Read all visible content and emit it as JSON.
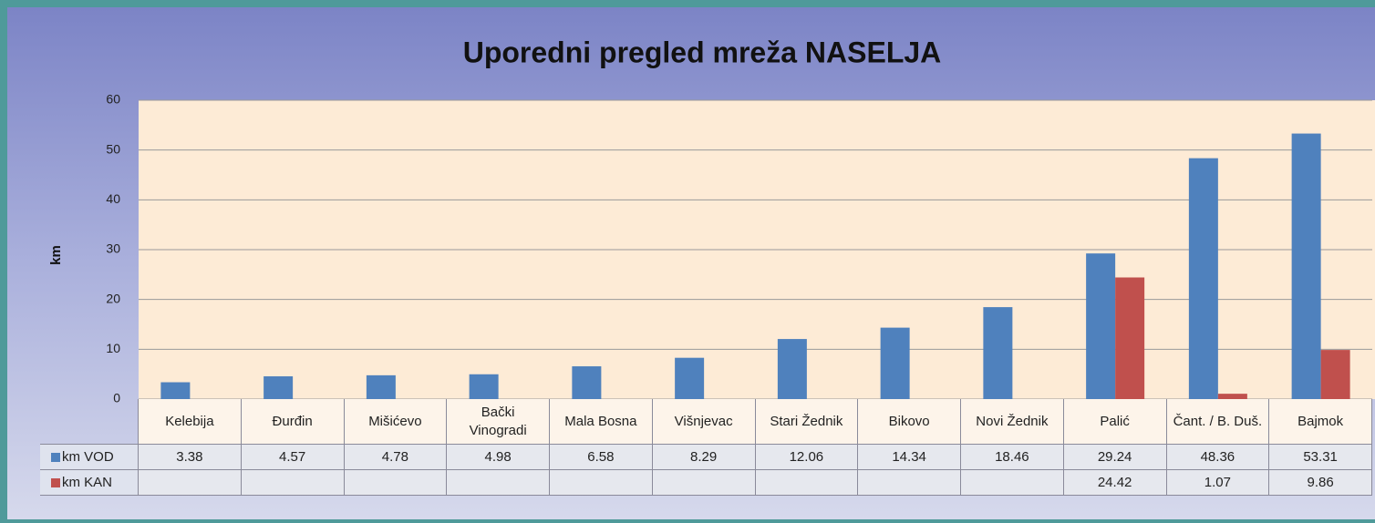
{
  "chart_data": {
    "type": "bar",
    "title": "Uporedni pregled mreža NASELJA",
    "y_label": "km",
    "categories": [
      "Kelebija",
      "Đurđin",
      "Mišićevo",
      "Bački Vinogradi",
      "Mala Bosna",
      "Višnjevac",
      "Stari Žednik",
      "Bikovo",
      "Novi Žednik",
      "Palić",
      "Čant. / B. Duš.",
      "Bajmok"
    ],
    "series": [
      {
        "name": "km VOD",
        "color": "#4f81bd",
        "values": [
          3.38,
          4.57,
          4.78,
          4.98,
          6.58,
          8.29,
          12.06,
          14.34,
          18.46,
          29.24,
          48.36,
          53.31
        ]
      },
      {
        "name": "km KAN",
        "color": "#c0504d",
        "values": [
          null,
          null,
          null,
          null,
          null,
          null,
          null,
          null,
          null,
          24.42,
          1.07,
          9.86
        ]
      }
    ],
    "ylim": [
      0,
      60
    ],
    "yticks": [
      0,
      10,
      20,
      30,
      40,
      50,
      60
    ],
    "grid": true
  }
}
